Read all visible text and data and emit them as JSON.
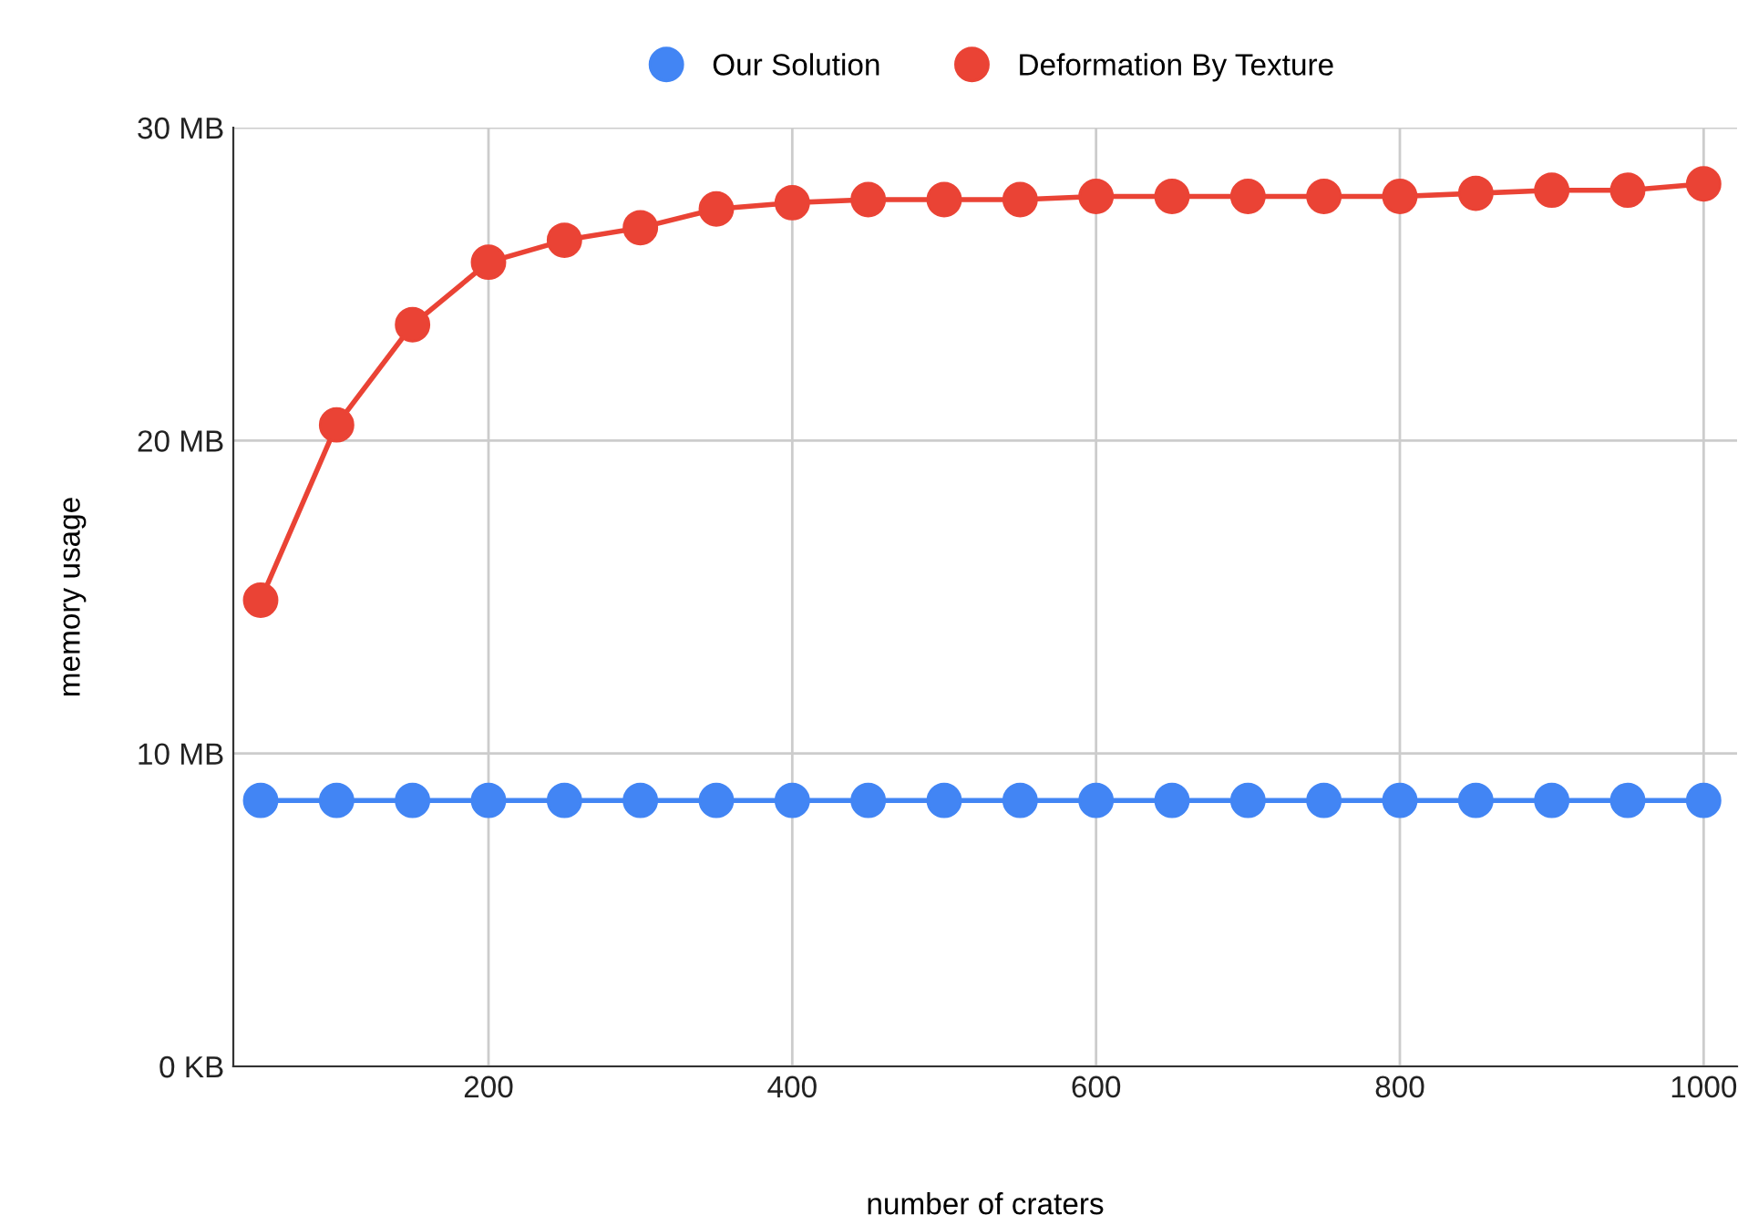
{
  "chart_data": {
    "type": "line",
    "xlabel": "number of craters",
    "ylabel": "memory usage",
    "x": [
      50,
      100,
      150,
      200,
      250,
      300,
      350,
      400,
      450,
      500,
      550,
      600,
      650,
      700,
      750,
      800,
      850,
      900,
      950,
      1000
    ],
    "series": [
      {
        "name": "Our Solution",
        "color": "#4285f4",
        "values": [
          8.5,
          8.5,
          8.5,
          8.5,
          8.5,
          8.5,
          8.5,
          8.5,
          8.5,
          8.5,
          8.5,
          8.5,
          8.5,
          8.5,
          8.5,
          8.5,
          8.5,
          8.5,
          8.5,
          8.5
        ]
      },
      {
        "name": "Deformation By Texture",
        "color": "#ea4335",
        "values": [
          14.9,
          20.5,
          23.7,
          25.7,
          26.4,
          26.8,
          27.4,
          27.6,
          27.7,
          27.7,
          27.7,
          27.8,
          27.8,
          27.8,
          27.8,
          27.8,
          27.9,
          28.0,
          28.0,
          28.2
        ]
      }
    ],
    "xlim": [
      32,
      1022
    ],
    "xticks": [
      200,
      400,
      600,
      800,
      1000
    ],
    "ylim": [
      0,
      30
    ],
    "yticks": [
      {
        "value": 0,
        "label": "0 KB"
      },
      {
        "value": 10,
        "label": "10 MB"
      },
      {
        "value": 20,
        "label": "20 MB"
      },
      {
        "value": 30,
        "label": "30 MB"
      }
    ],
    "grid": true,
    "legend": "top",
    "marker": "circle",
    "line_style": "solid"
  }
}
